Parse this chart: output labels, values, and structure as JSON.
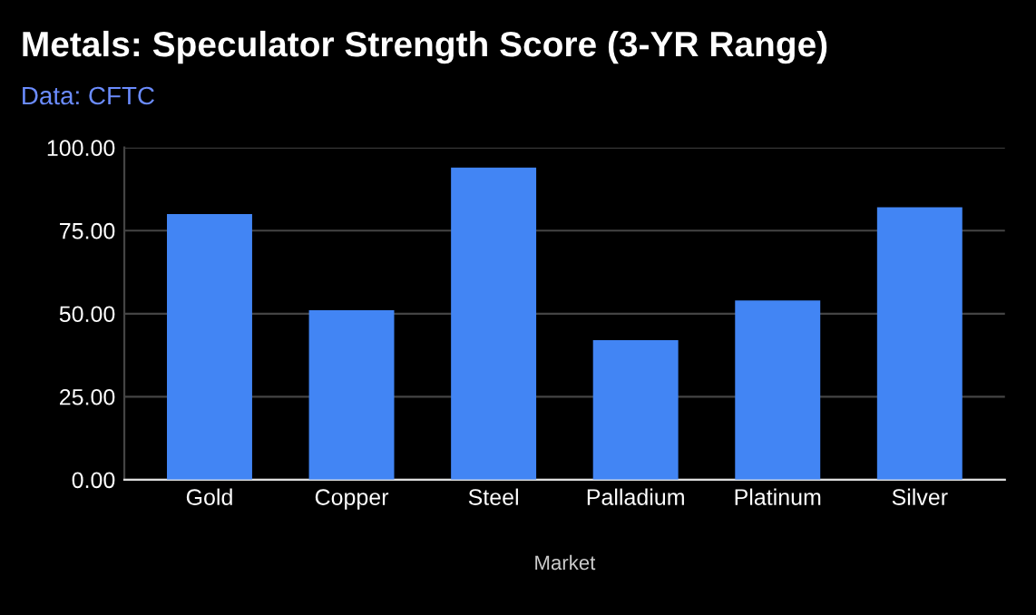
{
  "chart_data": {
    "type": "bar",
    "title": "Metals: Speculator Strength Score (3-YR Range)",
    "subtitle": "Data: CFTC",
    "xlabel": "Market",
    "categories": [
      "Gold",
      "Copper",
      "Steel",
      "Palladium",
      "Platinum",
      "Silver"
    ],
    "values": [
      80,
      51,
      94,
      42,
      54,
      82
    ],
    "color": "#4285f4",
    "ylim": [
      0,
      100
    ],
    "yticks": [
      {
        "value": 0,
        "label": "0.00"
      },
      {
        "value": 25,
        "label": "25.00"
      },
      {
        "value": 50,
        "label": "50.00"
      },
      {
        "value": 75,
        "label": "75.00"
      },
      {
        "value": 100,
        "label": "100.00"
      }
    ],
    "grid": "y",
    "legend": false
  }
}
